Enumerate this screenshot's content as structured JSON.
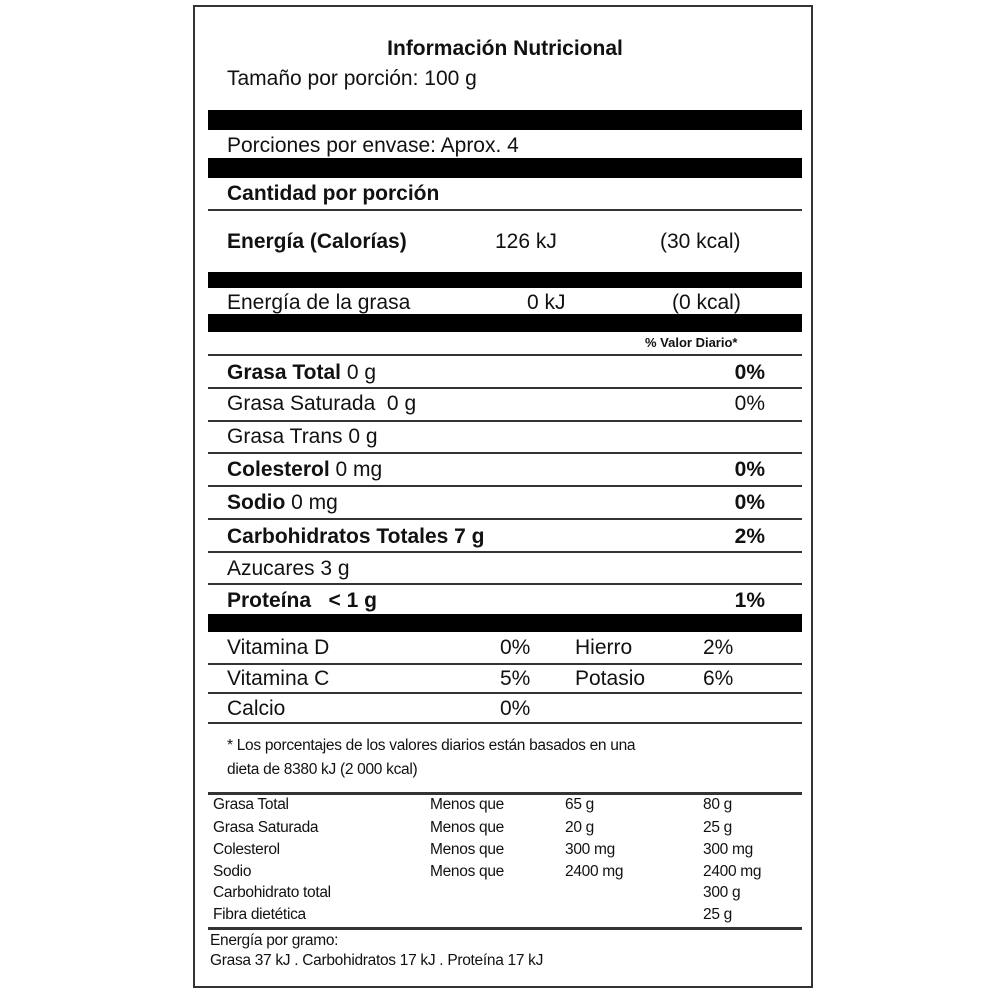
{
  "title": "Información Nutricional",
  "serving_size": "Tamaño por porción:  100  g",
  "servings_per_container": "Porciones por  envase:  Aprox. 4",
  "amount_per_serving": "Cantidad por porción",
  "energy": {
    "label": "Energía (Calorías)",
    "kj": "126  kJ",
    "kcal": "(30 kcal)"
  },
  "energy_fat": {
    "label": "Energía de la grasa",
    "kj": "0  kJ",
    "kcal": "(0 kcal)"
  },
  "daily_value_header": "% Valor Diario*",
  "nutrients": [
    {
      "name": "Grasa Total",
      "amount": " 0 g",
      "dv": "0%",
      "bold": true
    },
    {
      "name": "Grasa Saturada",
      "amount": "  0 g",
      "dv": "0%",
      "bold": false
    },
    {
      "name": "Grasa Trans",
      "amount": " 0 g",
      "dv": "",
      "bold": false
    },
    {
      "name": "Colesterol",
      "amount": " 0 mg",
      "dv": "0%",
      "bold": true
    },
    {
      "name": "Sodio",
      "amount": " 0 mg",
      "dv": "0%",
      "bold": true
    },
    {
      "name": "Carbohidratos Totales",
      "amount": " 7 g",
      "dv": "2%",
      "bold": true
    },
    {
      "name": "Azucares",
      "amount": " 3 g",
      "dv": "",
      "bold": false
    },
    {
      "name": "Proteína",
      "amount": "   < 1 g",
      "dv": "1%",
      "bold": true
    }
  ],
  "vitamins": [
    {
      "name": "Vitamina D",
      "dv": "0%",
      "name2": "Hierro",
      "dv2": "2%"
    },
    {
      "name": "Vitamina C",
      "dv": "5%",
      "name2": "Potasio",
      "dv2": "6%"
    },
    {
      "name": "Calcio",
      "dv": "0%",
      "name2": "",
      "dv2": ""
    }
  ],
  "footnote": [
    "*  Los porcentajes de los valores diarios están basados en una",
    "dieta de 8380 kJ (2 000 kcal)"
  ],
  "reference_table": [
    [
      "Grasa Total",
      "Menos que",
      "65 g",
      "80 g"
    ],
    [
      "Grasa Saturada",
      "Menos que",
      "20 g",
      "25 g"
    ],
    [
      "Colesterol",
      "Menos que",
      "300 mg",
      "300 mg"
    ],
    [
      "Sodio",
      "Menos que",
      "2400 mg",
      "2400 mg"
    ],
    [
      "Carbohidrato total",
      "",
      "",
      "300 g"
    ],
    [
      "Fibra dietética",
      "",
      "",
      "25 g"
    ]
  ],
  "energy_per_gram": [
    "Energía por gramo:",
    "Grasa 37 kJ . Carbohidratos 17 kJ . Proteína 17 kJ"
  ]
}
